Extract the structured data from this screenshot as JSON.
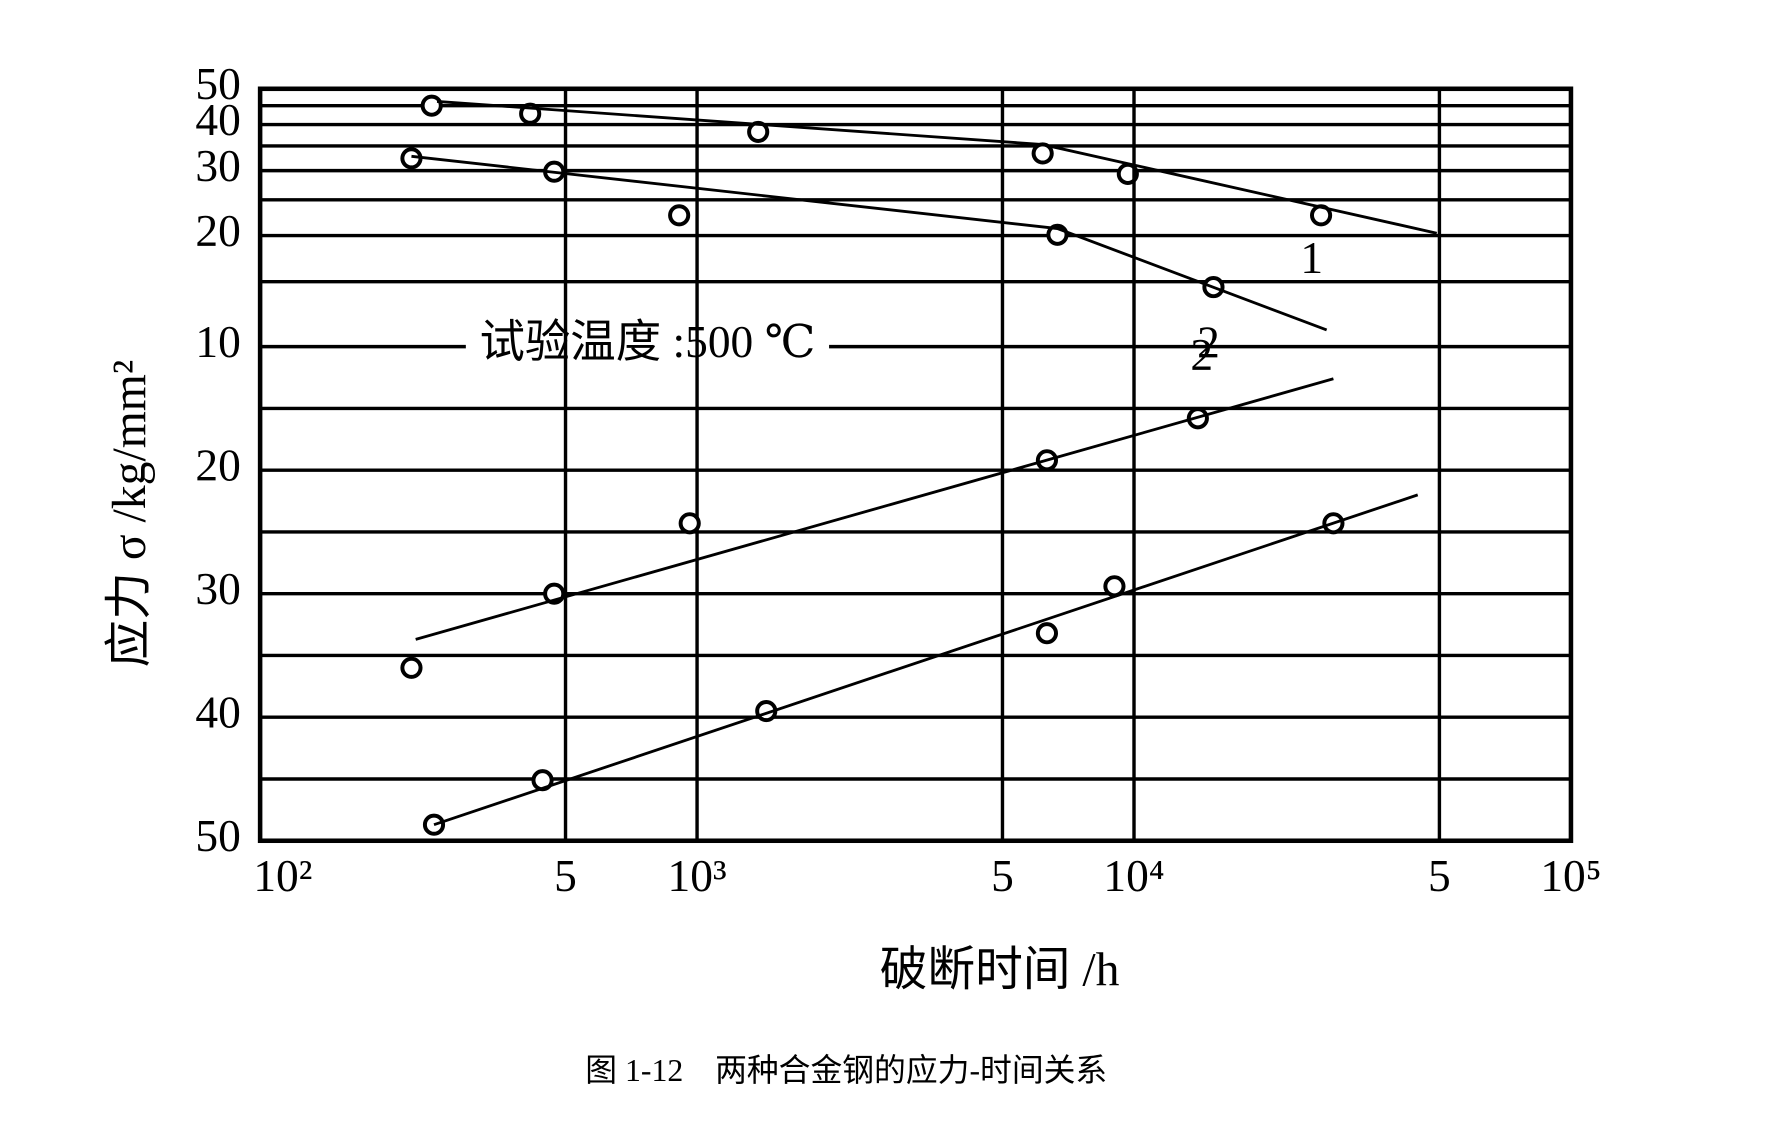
{
  "caption": "图 1-12　两种合金钢的应力-时间关系",
  "chart_data": [
    {
      "type": "line",
      "y_label": "应力 σ /kg/mm²",
      "annotation": "试验温度 :500 ℃",
      "xscale": "log",
      "xlim": [
        100,
        100000
      ],
      "yscale": "log",
      "ylim": [
        10,
        50
      ],
      "yticks": [
        50,
        40,
        30,
        20,
        10
      ],
      "ygrid": [
        45,
        35,
        25,
        15
      ],
      "grid": true,
      "series": [
        {
          "marker": "circle",
          "color": "#000",
          "x": [
            247,
            415,
            1380,
            6180,
            9680,
            26800
          ],
          "values": [
            45.0,
            42.8,
            38.2,
            33.4,
            29.4,
            22.7
          ]
        },
        {
          "name": "1",
          "marker": "none",
          "color": "#000",
          "x": [
            254,
            6180,
            49300
          ],
          "values": [
            46.2,
            35.3,
            20.3
          ]
        },
        {
          "marker": "circle",
          "color": "#000",
          "x": [
            222,
            471,
            910,
            6680,
            15200
          ],
          "values": [
            32.4,
            29.8,
            22.7,
            20.1,
            14.5
          ]
        },
        {
          "name": "2",
          "marker": "none",
          "color": "#000",
          "x": [
            222,
            6680,
            27600
          ],
          "values": [
            32.8,
            20.9,
            11.1
          ]
        }
      ]
    },
    {
      "type": "line",
      "x_label": "破断时间 /h",
      "xscale": "log",
      "xlim": [
        100,
        100000
      ],
      "xticks": [
        {
          "value": 100,
          "label": "10²"
        },
        {
          "value": 500,
          "label": "5"
        },
        {
          "value": 1000,
          "label": "10³"
        },
        {
          "value": 5000,
          "label": "5"
        },
        {
          "value": 10000,
          "label": "10⁴"
        },
        {
          "value": 50000,
          "label": "5"
        },
        {
          "value": 100000,
          "label": "10⁵"
        }
      ],
      "ylim": [
        10,
        50
      ],
      "y_inverted": true,
      "yticks": [
        20,
        30,
        40,
        50
      ],
      "ygrid": [
        15,
        25,
        35,
        45
      ],
      "grid": true,
      "series": [
        {
          "marker": "circle",
          "color": "#000",
          "x": [
            222,
            471,
            962,
            6320,
            14000
          ],
          "values": [
            36.0,
            30.0,
            24.3,
            19.2,
            15.8
          ]
        },
        {
          "name": "2",
          "marker": "none",
          "color": "#000",
          "x": [
            227,
            28600
          ],
          "values": [
            33.7,
            12.6
          ]
        },
        {
          "marker": "circle",
          "color": "#000",
          "x": [
            250,
            443,
            1440,
            6320,
            9020,
            28600
          ],
          "values": [
            48.7,
            45.1,
            39.5,
            33.2,
            29.4,
            24.3
          ]
        },
        {
          "marker": "none",
          "color": "#000",
          "x": [
            250,
            44600
          ],
          "values": [
            48.7,
            22.0
          ]
        }
      ]
    }
  ]
}
